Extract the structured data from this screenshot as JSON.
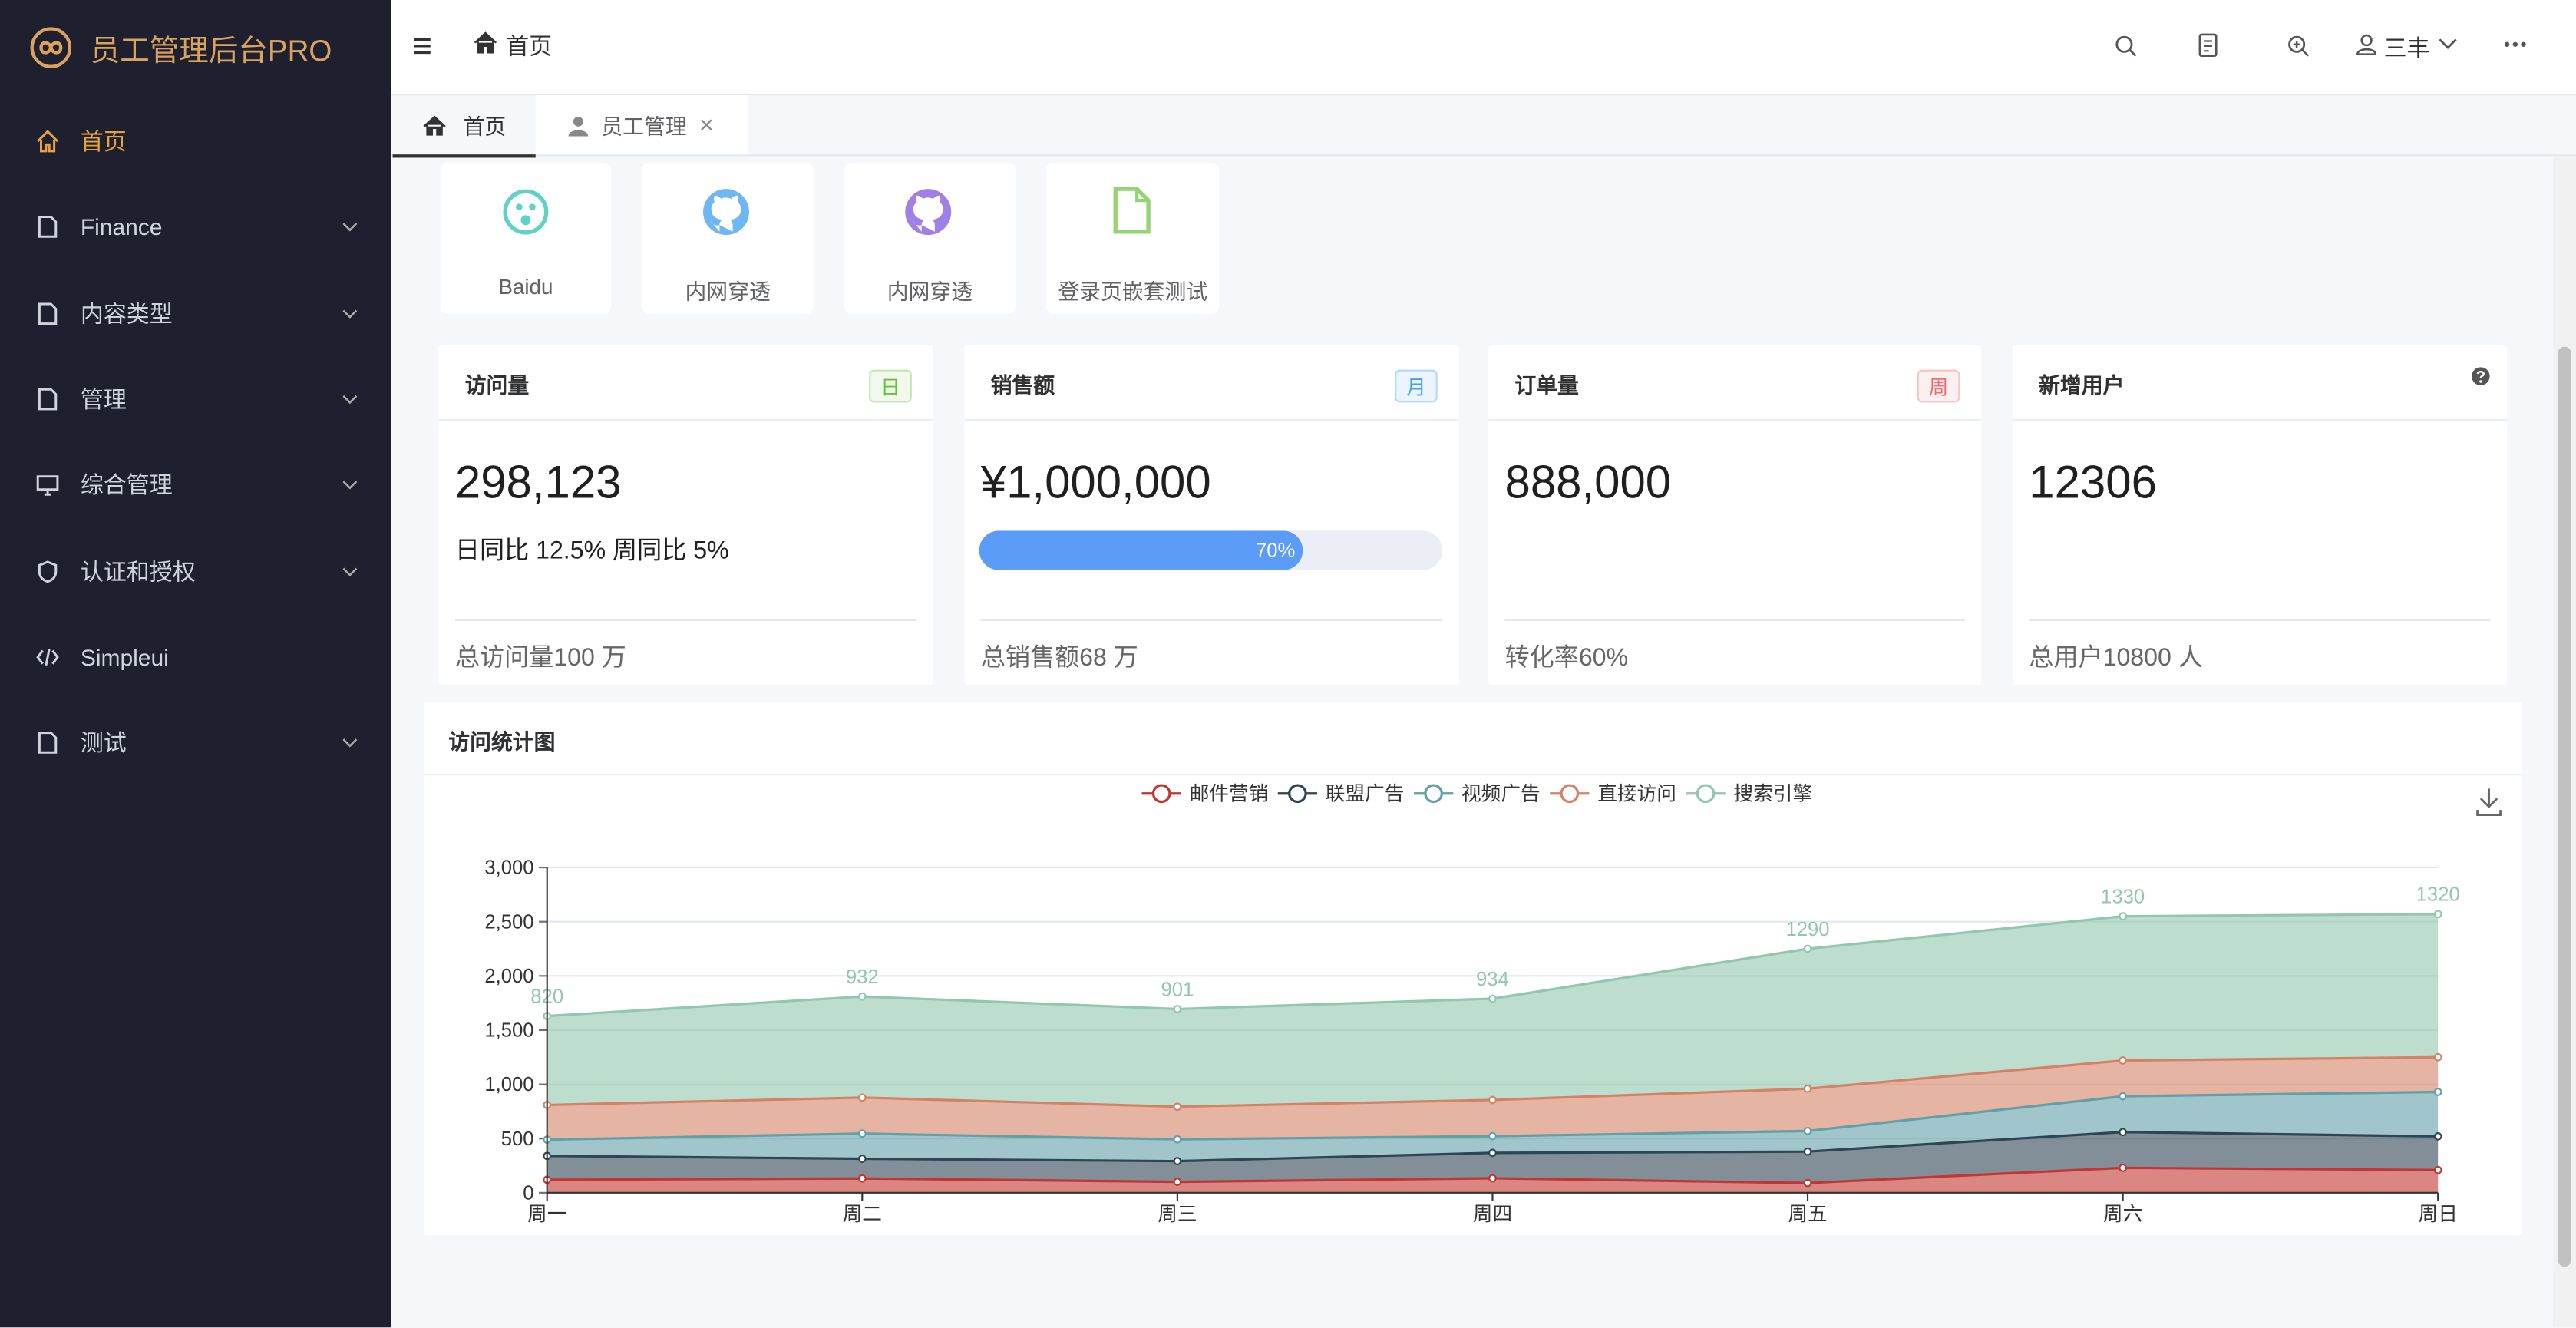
{
  "sidebar": {
    "title": "员工管理后台PRO",
    "menu": [
      {
        "label": "首页",
        "active": true
      },
      {
        "label": "Finance",
        "expandable": true
      },
      {
        "label": "内容类型",
        "expandable": true
      },
      {
        "label": "管理",
        "expandable": true
      },
      {
        "label": "综合管理",
        "expandable": true
      },
      {
        "label": "认证和授权",
        "expandable": true
      },
      {
        "label": "Simpleui"
      },
      {
        "label": "测试",
        "expandable": true
      }
    ]
  },
  "header": {
    "breadcrumb": "首页",
    "user": "三丰"
  },
  "tabs": [
    "首页",
    "员工管理"
  ],
  "shortcuts": [
    "Baidu",
    "内网穿透",
    "内网穿透",
    "登录页嵌套测试"
  ],
  "cards": [
    {
      "title": "访问量",
      "tag": "日",
      "value": "298,123",
      "detail": "日同比 12.5% 周同比 5%",
      "footer": "总访问量100 万"
    },
    {
      "title": "销售额",
      "tag": "月",
      "value": "¥1,000,000",
      "progress": 70,
      "progress_label": "70%",
      "footer": "总销售额68 万"
    },
    {
      "title": "订单量",
      "tag": "周",
      "value": "888,000",
      "footer": "转化率60%"
    },
    {
      "title": "新增用户",
      "value": "12306",
      "footer": "总用户10800 人"
    }
  ],
  "chart_panel_title": "访问统计图",
  "chart_data": {
    "type": "area",
    "stacked": true,
    "legend": "top",
    "grid": true,
    "categories": [
      "周一",
      "周二",
      "周三",
      "周四",
      "周五",
      "周六",
      "周日"
    ],
    "series": [
      {
        "name": "邮件营销",
        "color": "#c23531",
        "values": [
          120,
          132,
          101,
          134,
          90,
          230,
          210
        ]
      },
      {
        "name": "联盟广告",
        "color": "#2f4554",
        "values": [
          220,
          182,
          191,
          234,
          290,
          330,
          310
        ]
      },
      {
        "name": "视频广告",
        "color": "#61a0a8",
        "values": [
          150,
          232,
          201,
          154,
          190,
          330,
          410
        ]
      },
      {
        "name": "直接访问",
        "color": "#d48265",
        "values": [
          320,
          332,
          301,
          334,
          390,
          330,
          320
        ]
      },
      {
        "name": "搜索引擎",
        "color": "#91c7ae",
        "values": [
          820,
          932,
          901,
          934,
          1290,
          1330,
          1320
        ],
        "labels": true
      }
    ],
    "ylim": [
      0,
      3000
    ],
    "yticks": [
      0,
      500,
      {
        "value": 1000,
        "label": "1,000"
      },
      {
        "value": 1500,
        "label": "1,500"
      },
      {
        "value": 2000,
        "label": "2,000"
      },
      {
        "value": 2500,
        "label": "2,500"
      },
      {
        "value": 3000,
        "label": "3,000"
      }
    ]
  }
}
